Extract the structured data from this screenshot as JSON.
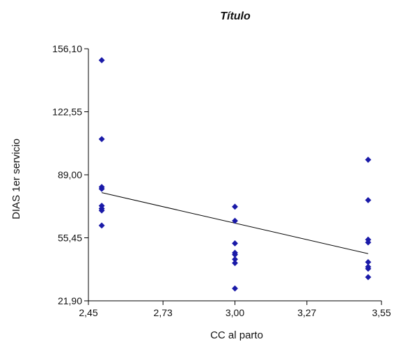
{
  "chart_data": {
    "type": "scatter",
    "title": "Título",
    "xlabel": "CC al parto",
    "ylabel": "DIAS 1er servicio",
    "xlim": [
      2.45,
      3.55
    ],
    "ylim": [
      21.9,
      156.1
    ],
    "x_ticks": [
      "2,45",
      "2,73",
      "3,00",
      "3,27",
      "3,55"
    ],
    "y_ticks": [
      "21,90",
      "55,45",
      "89,00",
      "122,55",
      "156,10"
    ],
    "x_tick_values": [
      2.45,
      2.73,
      3.0,
      3.27,
      3.55
    ],
    "y_tick_values": [
      21.9,
      55.45,
      89.0,
      122.55,
      156.1
    ],
    "grid": false,
    "legend": "none",
    "points": [
      {
        "x": 2.5,
        "y": 150.0
      },
      {
        "x": 2.5,
        "y": 108.0
      },
      {
        "x": 2.5,
        "y": 82.5
      },
      {
        "x": 2.5,
        "y": 81.5
      },
      {
        "x": 2.5,
        "y": 72.5
      },
      {
        "x": 2.5,
        "y": 71.0
      },
      {
        "x": 2.5,
        "y": 70.0
      },
      {
        "x": 2.5,
        "y": 62.0
      },
      {
        "x": 3.0,
        "y": 72.0
      },
      {
        "x": 3.0,
        "y": 64.5
      },
      {
        "x": 3.0,
        "y": 52.5
      },
      {
        "x": 3.0,
        "y": 47.5
      },
      {
        "x": 3.0,
        "y": 46.5
      },
      {
        "x": 3.0,
        "y": 44.0
      },
      {
        "x": 3.0,
        "y": 42.0
      },
      {
        "x": 3.0,
        "y": 28.5
      },
      {
        "x": 3.5,
        "y": 97.0
      },
      {
        "x": 3.5,
        "y": 75.5
      },
      {
        "x": 3.5,
        "y": 54.5
      },
      {
        "x": 3.5,
        "y": 53.0
      },
      {
        "x": 3.5,
        "y": 42.5
      },
      {
        "x": 3.5,
        "y": 40.0
      },
      {
        "x": 3.5,
        "y": 39.0
      },
      {
        "x": 3.5,
        "y": 34.5
      }
    ],
    "trendline": {
      "x": [
        2.5,
        3.5
      ],
      "y": [
        79.5,
        47.0
      ]
    },
    "colors": {
      "marker": "#1a1aa8",
      "trendline": "#000000",
      "axis": "#000000"
    }
  }
}
